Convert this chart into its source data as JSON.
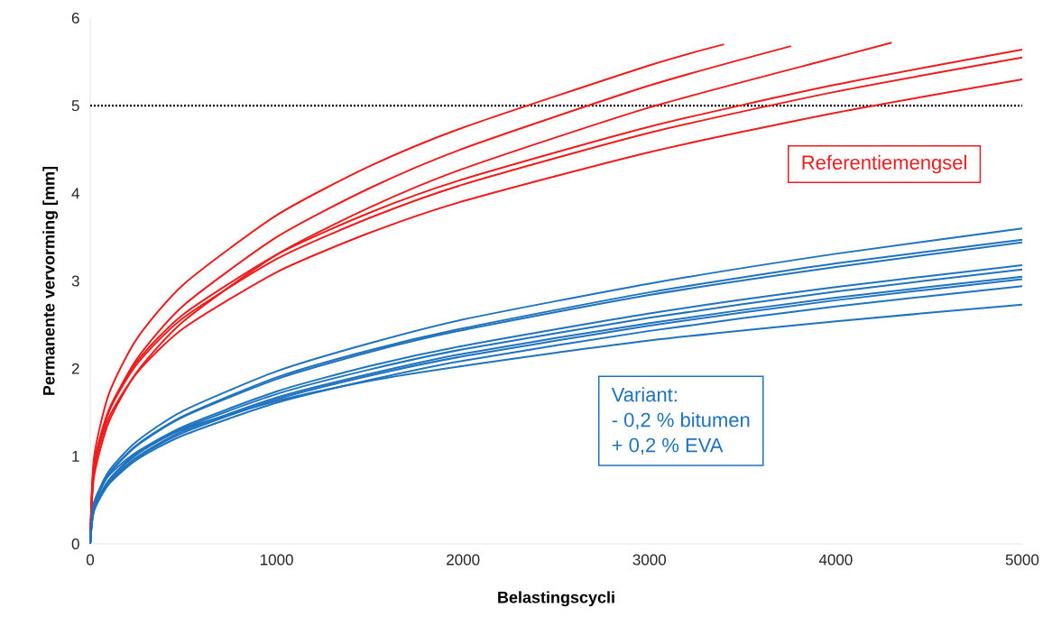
{
  "chart_data": {
    "type": "line",
    "xlabel": "Belastingscycli",
    "ylabel": "Permanente vervorming [mm]",
    "xlim": [
      0,
      5000
    ],
    "ylim": [
      0,
      6
    ],
    "xticks": [
      0,
      1000,
      2000,
      3000,
      4000,
      5000
    ],
    "yticks": [
      0,
      1,
      2,
      3,
      4,
      5,
      6
    ],
    "grid": false,
    "marker": "none",
    "line_style": "solid",
    "ref_lines": [
      {
        "axis": "y",
        "value": 5,
        "color": "#000000",
        "line_style": "dotted"
      }
    ],
    "annotations": [
      "Referentiemengsel",
      "Variant:",
      "- 0,2 % bitumen",
      "+ 0,2 % EVA"
    ],
    "series": [
      {
        "color": "#ee1c1c",
        "x": [
          0,
          20,
          100,
          250,
          500,
          1000,
          1500,
          2000,
          3000,
          3400
        ],
        "values": [
          0,
          0.98,
          1.71,
          2.34,
          2.96,
          3.75,
          4.31,
          4.75,
          5.46,
          5.7
        ]
      },
      {
        "color": "#ee1c1c",
        "x": [
          0,
          20,
          100,
          250,
          500,
          1000,
          1500,
          2000,
          3000,
          3760
        ],
        "values": [
          0,
          0.84,
          1.51,
          2.11,
          2.72,
          3.5,
          4.06,
          4.51,
          5.23,
          5.68
        ]
      },
      {
        "color": "#ee1c1c",
        "x": [
          0,
          20,
          100,
          250,
          500,
          1000,
          1500,
          2000,
          3000,
          4000,
          4300
        ],
        "values": [
          0,
          0.76,
          1.39,
          1.96,
          2.54,
          3.3,
          3.84,
          4.28,
          4.98,
          5.55,
          5.72
        ]
      },
      {
        "color": "#ee1c1c",
        "x": [
          0,
          20,
          100,
          250,
          500,
          1000,
          1500,
          2000,
          3000,
          4000,
          5000
        ],
        "values": [
          0,
          0.9,
          1.53,
          2.08,
          2.62,
          3.3,
          3.78,
          4.16,
          4.76,
          5.24,
          5.64
        ]
      },
      {
        "color": "#ee1c1c",
        "x": [
          0,
          20,
          100,
          250,
          500,
          1000,
          1500,
          2000,
          3000,
          4000,
          5000
        ],
        "values": [
          0,
          0.88,
          1.51,
          2.05,
          2.58,
          3.25,
          3.72,
          4.1,
          4.69,
          5.16,
          5.55
        ]
      },
      {
        "color": "#ee1c1c",
        "x": [
          0,
          20,
          100,
          250,
          500,
          1000,
          1500,
          2000,
          3000,
          4000,
          5000
        ],
        "values": [
          0,
          0.84,
          1.44,
          1.95,
          2.46,
          3.1,
          3.55,
          3.91,
          4.47,
          4.92,
          5.3
        ]
      },
      {
        "color": "#1f73be",
        "x": [
          0,
          20,
          100,
          250,
          500,
          1000,
          1500,
          2000,
          3000,
          4000,
          5000
        ],
        "values": [
          0,
          0.46,
          0.83,
          1.17,
          1.52,
          1.97,
          2.29,
          2.56,
          2.97,
          3.31,
          3.6
        ]
      },
      {
        "color": "#1f73be",
        "x": [
          0,
          20,
          100,
          250,
          500,
          1000,
          1500,
          2000,
          3000,
          4000,
          5000
        ],
        "values": [
          0,
          0.44,
          0.8,
          1.13,
          1.46,
          1.9,
          2.21,
          2.46,
          2.87,
          3.2,
          3.47
        ]
      },
      {
        "color": "#1f73be",
        "x": [
          0,
          20,
          100,
          250,
          500,
          1000,
          1500,
          2000,
          3000,
          4000,
          5000
        ],
        "values": [
          0,
          0.43,
          0.79,
          1.12,
          1.45,
          1.88,
          2.19,
          2.44,
          2.84,
          3.16,
          3.44
        ]
      },
      {
        "color": "#1f73be",
        "x": [
          0,
          20,
          100,
          250,
          500,
          1000,
          1500,
          2000,
          3000,
          4000,
          5000
        ],
        "values": [
          0,
          0.4,
          0.73,
          1.04,
          1.34,
          1.74,
          2.03,
          2.26,
          2.63,
          2.93,
          3.18
        ]
      },
      {
        "color": "#1f73be",
        "x": [
          0,
          20,
          100,
          250,
          500,
          1000,
          1500,
          2000,
          3000,
          4000,
          5000
        ],
        "values": [
          0,
          0.4,
          0.72,
          1.02,
          1.32,
          1.71,
          1.99,
          2.22,
          2.58,
          2.88,
          3.13
        ]
      },
      {
        "color": "#1f73be",
        "x": [
          0,
          20,
          100,
          250,
          500,
          1000,
          1500,
          2000,
          3000,
          4000,
          5000
        ],
        "values": [
          0,
          0.39,
          0.7,
          0.99,
          1.29,
          1.67,
          1.94,
          2.17,
          2.52,
          2.81,
          3.05
        ]
      },
      {
        "color": "#1f73be",
        "x": [
          0,
          20,
          100,
          250,
          500,
          1000,
          1500,
          2000,
          3000,
          4000,
          5000
        ],
        "values": [
          0,
          0.38,
          0.7,
          0.98,
          1.27,
          1.65,
          1.92,
          2.14,
          2.49,
          2.78,
          3.02
        ]
      },
      {
        "color": "#1f73be",
        "x": [
          0,
          20,
          100,
          250,
          500,
          1000,
          1500,
          2000,
          3000,
          4000,
          5000
        ],
        "values": [
          0,
          0.37,
          0.68,
          0.96,
          1.24,
          1.61,
          1.87,
          2.09,
          2.43,
          2.71,
          2.94
        ]
      },
      {
        "color": "#1f73be",
        "x": [
          0,
          20,
          100,
          250,
          500,
          1000,
          1500,
          2000,
          3000,
          4000,
          5000
        ],
        "values": [
          0,
          0.47,
          0.78,
          1.05,
          1.31,
          1.63,
          1.86,
          2.03,
          2.32,
          2.54,
          2.73
        ]
      }
    ]
  }
}
